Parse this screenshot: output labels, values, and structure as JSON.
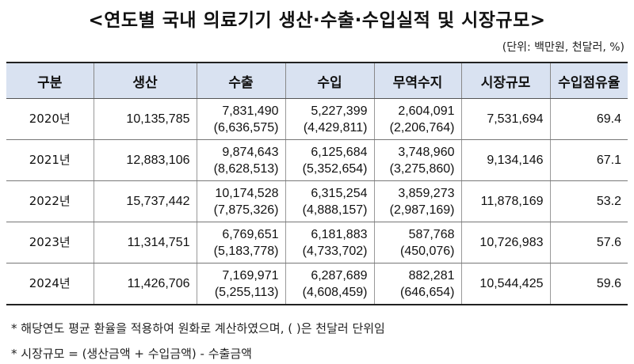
{
  "title": "<연도별 국내 의료기기 생산·수출·수입실적 및 시장규모>",
  "unit": "(단위: 백만원, 천달러, %)",
  "headers": [
    "구분",
    "생산",
    "수출",
    "수입",
    "무역수지",
    "시장규모",
    "수입점유율"
  ],
  "rows": [
    {
      "year": "2020년",
      "production": "10,135,785",
      "export": "7,831,490",
      "export_usd": "(6,636,575)",
      "import": "5,227,399",
      "import_usd": "(4,429,811)",
      "trade": "2,604,091",
      "trade_usd": "(2,206,764)",
      "market": "7,531,694",
      "share": "69.4"
    },
    {
      "year": "2021년",
      "production": "12,883,106",
      "export": "9,874,643",
      "export_usd": "(8,628,513)",
      "import": "6,125,684",
      "import_usd": "(5,352,654)",
      "trade": "3,748,960",
      "trade_usd": "(3,275,860)",
      "market": "9,134,146",
      "share": "67.1"
    },
    {
      "year": "2022년",
      "production": "15,737,442",
      "export": "10,174,528",
      "export_usd": "(7,875,326)",
      "import": "6,315,254",
      "import_usd": "(4,888,157)",
      "trade": "3,859,273",
      "trade_usd": "(2,987,169)",
      "market": "11,878,169",
      "share": "53.2"
    },
    {
      "year": "2023년",
      "production": "11,314,751",
      "export": "6,769,651",
      "export_usd": "(5,183,778)",
      "import": "6,181,883",
      "import_usd": "(4,733,702)",
      "trade": "587,768",
      "trade_usd": "(450,076)",
      "market": "10,726,983",
      "share": "57.6"
    },
    {
      "year": "2024년",
      "production": "11,426,706",
      "export": "7,169,971",
      "export_usd": "(5,255,113)",
      "import": "6,287,689",
      "import_usd": "(4,608,459)",
      "trade": "882,281",
      "trade_usd": "(646,654)",
      "market": "10,544,425",
      "share": "59.6"
    }
  ],
  "notes": [
    "* 해당연도 평균 환율을 적용하여 원화로 계산하였으며, (  )은 천달러 단위임",
    "* 시장규모 = (생산금액 + 수입금액) - 수출금액"
  ],
  "colors": {
    "header_bg": "#d9e2f1"
  }
}
